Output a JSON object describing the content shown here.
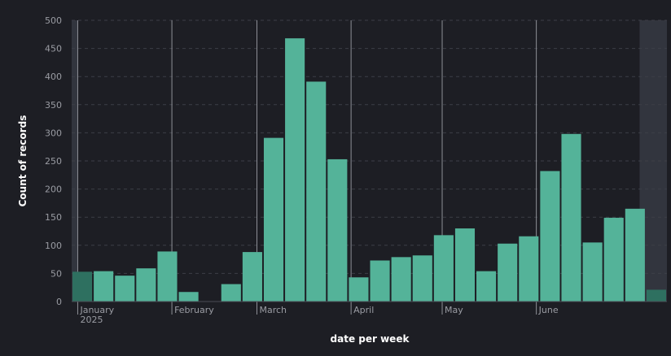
{
  "chart_data": {
    "type": "bar",
    "xlabel": "date per week",
    "ylabel": "Count of records",
    "ylim": [
      0,
      500
    ],
    "y_ticks": [
      0,
      50,
      100,
      150,
      200,
      250,
      300,
      350,
      400,
      450,
      500
    ],
    "grid": true,
    "x_unit": "week",
    "bars": [
      {
        "week_start": "2024-12-30",
        "value": 53,
        "partial": true
      },
      {
        "week_start": "2025-01-06",
        "value": 54
      },
      {
        "week_start": "2025-01-13",
        "value": 46
      },
      {
        "week_start": "2025-01-20",
        "value": 59
      },
      {
        "week_start": "2025-01-27",
        "value": 89
      },
      {
        "week_start": "2025-02-03",
        "value": 17
      },
      {
        "week_start": "2025-02-10",
        "value": 0
      },
      {
        "week_start": "2025-02-17",
        "value": 31
      },
      {
        "week_start": "2025-02-24",
        "value": 88
      },
      {
        "week_start": "2025-03-03",
        "value": 291
      },
      {
        "week_start": "2025-03-10",
        "value": 468
      },
      {
        "week_start": "2025-03-17",
        "value": 391
      },
      {
        "week_start": "2025-03-24",
        "value": 253
      },
      {
        "week_start": "2025-03-31",
        "value": 43
      },
      {
        "week_start": "2025-04-07",
        "value": 73
      },
      {
        "week_start": "2025-04-14",
        "value": 79
      },
      {
        "week_start": "2025-04-21",
        "value": 82
      },
      {
        "week_start": "2025-04-28",
        "value": 118
      },
      {
        "week_start": "2025-05-05",
        "value": 130
      },
      {
        "week_start": "2025-05-12",
        "value": 54
      },
      {
        "week_start": "2025-05-19",
        "value": 103
      },
      {
        "week_start": "2025-05-26",
        "value": 116
      },
      {
        "week_start": "2025-06-02",
        "value": 232
      },
      {
        "week_start": "2025-06-09",
        "value": 298
      },
      {
        "week_start": "2025-06-16",
        "value": 105
      },
      {
        "week_start": "2025-06-23",
        "value": 149
      },
      {
        "week_start": "2025-06-30",
        "value": 165
      },
      {
        "week_start": "2025-07-07",
        "value": 21,
        "partial": true
      }
    ],
    "x_domain": [
      "2024-12-30",
      "2025-07-14"
    ],
    "month_labels": [
      {
        "date": "2025-01-01",
        "label": "January",
        "sublabel": "2025"
      },
      {
        "date": "2025-02-01",
        "label": "February"
      },
      {
        "date": "2025-03-01",
        "label": "March"
      },
      {
        "date": "2025-04-01",
        "label": "April"
      },
      {
        "date": "2025-05-01",
        "label": "May"
      },
      {
        "date": "2025-06-01",
        "label": "June"
      }
    ],
    "shaded_ranges": [
      {
        "from": "2024-12-30",
        "to": "2025-01-01"
      },
      {
        "from": "2025-07-05",
        "to": "2025-07-14"
      }
    ],
    "colors": {
      "background": "#1d1e24",
      "bar": "#54b399",
      "bar_partial": "#2e7060",
      "shade": "#3a3d47",
      "grid": "#3d3f47",
      "month_line": "#8e9097"
    }
  }
}
